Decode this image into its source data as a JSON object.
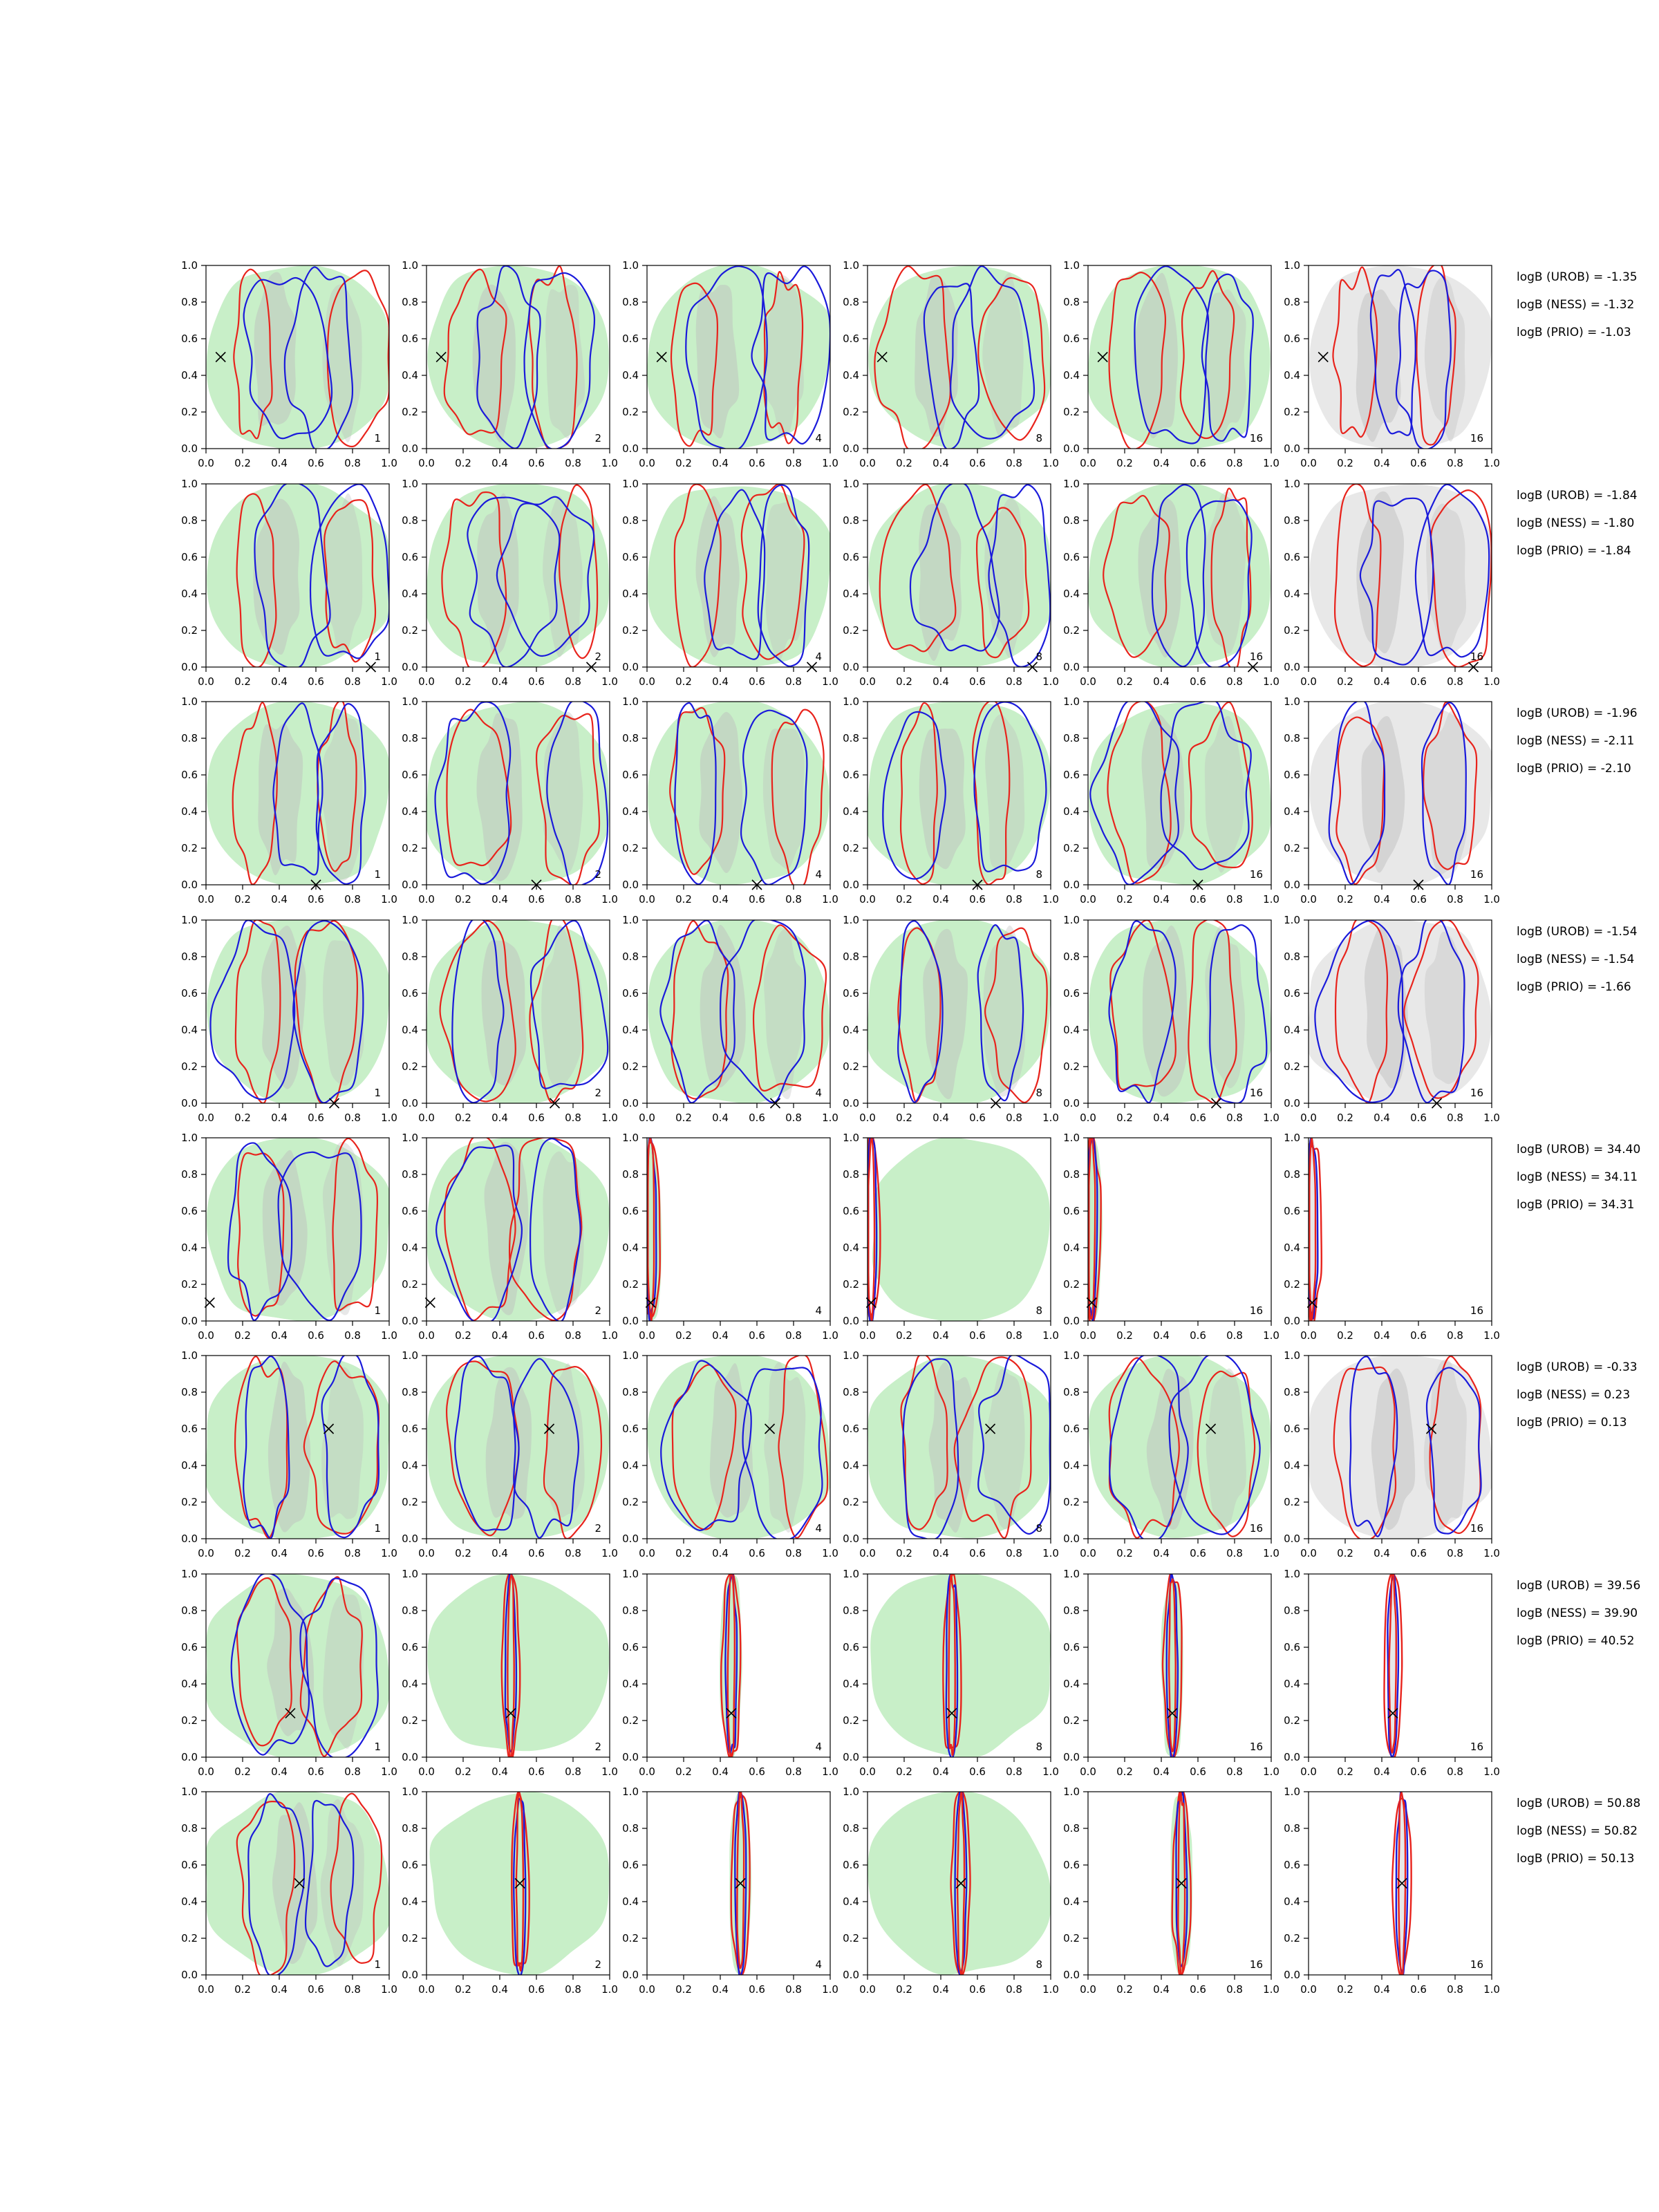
{
  "chart_data": {
    "type": "contour",
    "description_rows": 8,
    "description_cols": 6,
    "x_ticks": [
      "0.0",
      "0.2",
      "0.4",
      "0.6",
      "0.8",
      "1.0"
    ],
    "y_ticks": [
      "0.0",
      "0.2",
      "0.4",
      "0.6",
      "0.8",
      "1.0"
    ],
    "xlim": [
      0,
      1
    ],
    "ylim": [
      0,
      1
    ],
    "panel_labels": [
      "1",
      "2",
      "4",
      "8",
      "16",
      "16"
    ],
    "colors": {
      "red_contour": "#e8231c",
      "blue_contour": "#1a1adb",
      "green_fill": "#c8efc8",
      "grey_fill": "#bdbdbd",
      "light_grey_fill": "#e8e8e8"
    },
    "rows": [
      {
        "marker": [
          0.08,
          0.5
        ],
        "logB": [
          "logB (UROB) = -1.35",
          "logB (NESS) = -1.32",
          "logB (PRIO) = -1.03"
        ]
      },
      {
        "marker": [
          0.9,
          0.0
        ],
        "logB": [
          "logB (UROB) = -1.84",
          "logB (NESS) = -1.80",
          "logB (PRIO) = -1.84"
        ]
      },
      {
        "marker": [
          0.6,
          0.0
        ],
        "logB": [
          "logB (UROB) = -1.96",
          "logB (NESS) = -2.11",
          "logB (PRIO) = -2.10"
        ]
      },
      {
        "marker": [
          0.7,
          0.0
        ],
        "logB": [
          "logB (UROB) = -1.54",
          "logB (NESS) = -1.54",
          "logB (PRIO) = -1.66"
        ]
      },
      {
        "marker": [
          0.02,
          0.1
        ],
        "logB": [
          "logB (UROB) = 34.40",
          "logB (NESS) = 34.11",
          "logB (PRIO) = 34.31"
        ]
      },
      {
        "marker": [
          0.67,
          0.6
        ],
        "logB": [
          "logB (UROB) = -0.33",
          "logB (NESS) = 0.23",
          "logB (PRIO) = 0.13"
        ]
      },
      {
        "marker": [
          0.46,
          0.24
        ],
        "logB": [
          "logB (UROB) = 39.56",
          "logB (NESS) = 39.90",
          "logB (PRIO) = 40.52"
        ]
      },
      {
        "marker": [
          0.51,
          0.5
        ],
        "logB": [
          "logB (UROB) = 50.88",
          "logB (NESS) = 50.82",
          "logB (PRIO) = 50.13"
        ]
      }
    ]
  }
}
